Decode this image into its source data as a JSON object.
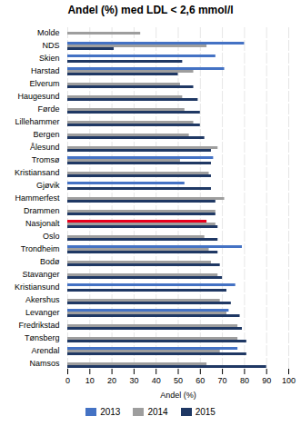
{
  "chart_data": {
    "type": "bar",
    "orientation": "horizontal",
    "title": "Andel (%) med LDL < 2,6 mmol/l",
    "xlabel": "Andel (%)",
    "categories": [
      "Molde",
      "NDS",
      "Skien",
      "Harstad",
      "Elverum",
      "Haugesund",
      "Førde",
      "Lillehammer",
      "Bergen",
      "Ålesund",
      "Tromsø",
      "Kristiansand",
      "Gjøvik",
      "Hammerfest",
      "Drammen",
      "Nasjonalt",
      "Oslo",
      "Trondheim",
      "Bodø",
      "Stavanger",
      "Kristiansund",
      "Akershus",
      "Levanger",
      "Fredrikstad",
      "Tønsberg",
      "Arendal",
      "Namsos"
    ],
    "series": [
      {
        "name": "2013",
        "color": "#4472c4",
        "colors": [
          "#4472c4",
          "#4472c4",
          "#4472c4",
          "#4472c4",
          "#4472c4",
          "#4472c4",
          "#4472c4",
          "#4472c4",
          "#4472c4",
          "#4472c4",
          "#4472c4",
          "#4472c4",
          "#4472c4",
          "#4472c4",
          "#4472c4",
          "#e8001c",
          "#4472c4",
          "#4472c4",
          "#4472c4",
          "#4472c4",
          "#4472c4",
          "#4472c4",
          "#4472c4",
          "#4472c4",
          "#4472c4",
          "#4472c4",
          "#4472c4"
        ],
        "values": [
          null,
          80,
          67,
          71,
          null,
          null,
          null,
          null,
          null,
          null,
          66,
          null,
          53,
          null,
          null,
          63,
          null,
          79,
          null,
          null,
          76,
          null,
          73,
          null,
          null,
          77,
          null
        ]
      },
      {
        "name": "2014",
        "color": "#9e9e9e",
        "values": [
          33,
          63,
          null,
          57,
          51,
          52,
          53,
          57,
          55,
          68,
          51,
          64,
          null,
          71,
          67,
          67,
          62,
          64,
          65,
          68,
          null,
          69,
          72,
          77,
          77,
          69,
          63
        ]
      },
      {
        "name": "2015",
        "color": "#1f3864",
        "values": [
          null,
          21,
          52,
          50,
          57,
          59,
          60,
          60,
          62,
          65,
          65,
          65,
          65,
          67,
          67,
          68,
          68,
          68,
          69,
          70,
          72,
          74,
          78,
          79,
          81,
          81,
          90
        ]
      }
    ],
    "xlim": [
      0,
      100
    ],
    "xticks": [
      0,
      10,
      20,
      30,
      40,
      50,
      60,
      70,
      80,
      90,
      100
    ],
    "grid": true,
    "legend": "bottom"
  }
}
